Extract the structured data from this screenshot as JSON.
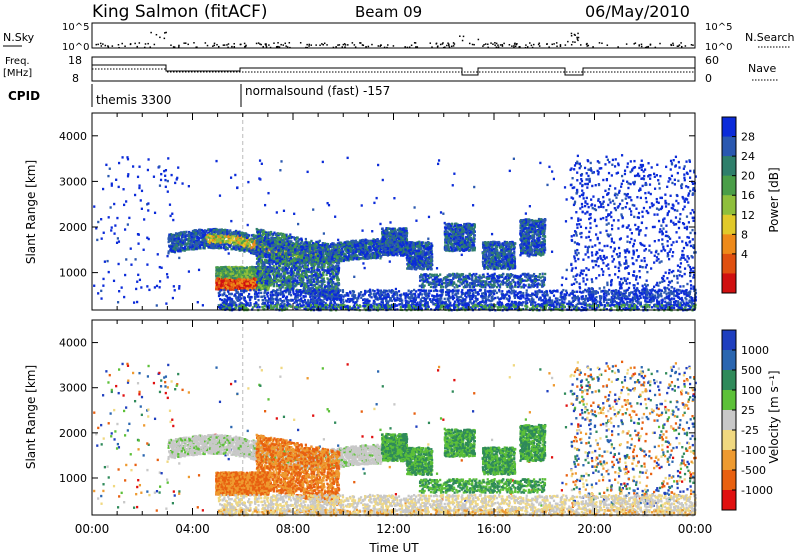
{
  "header": {
    "station": "King Salmon (fitACF)",
    "beam": "Beam 09",
    "date": "06/May/2010"
  },
  "panels": {
    "nsky_label": "N.Sky",
    "nsearch_label": "N.Search",
    "freq_label_line1": "Freq.",
    "freq_label_line2": "[MHz]",
    "nave_label": "Nave",
    "cpid_label": "CPID",
    "nsky_ticks": [
      "10^5",
      "10^0"
    ],
    "nsearch_ticks": [
      "10^5",
      "10^0"
    ],
    "freq_ticks": [
      "18",
      "8"
    ],
    "nave_ticks": [
      "60",
      "0"
    ],
    "cpid_segments": [
      {
        "label": "themis 3300",
        "start_hour": 0
      },
      {
        "label": "normalsound (fast) -157",
        "start_hour": 6
      }
    ]
  },
  "chart_data": [
    {
      "type": "heatmap",
      "title": "",
      "xlabel": "Time UT",
      "ylabel": "Slant Range [km]",
      "xlim": [
        0,
        24
      ],
      "ylim": [
        180,
        4500
      ],
      "x_tick_labels": [
        "00:00",
        "04:00",
        "08:00",
        "12:00",
        "16:00",
        "20:00",
        "00:00"
      ],
      "y_tick_labels": [
        "1000",
        "2000",
        "3000",
        "4000"
      ],
      "colorbar": {
        "label": "Power [dB]",
        "ticks": [
          "4",
          "8",
          "12",
          "16",
          "20",
          "24",
          "28"
        ],
        "colors": [
          "#0b2bd9",
          "#2a58b0",
          "#2f7f6b",
          "#4a9e48",
          "#8fbf3c",
          "#e1c92a",
          "#ee8a1a",
          "#e05010",
          "#d01010"
        ]
      },
      "features": [
        {
          "name": "F-region band",
          "hours": [
            3.0,
            9.5
          ],
          "range_km": [
            1400,
            1900
          ],
          "max_power_db": 20
        },
        {
          "name": "E-region intense echo",
          "hours": [
            4.9,
            7.0
          ],
          "range_km": [
            650,
            1150
          ],
          "max_power_db": 28
        },
        {
          "name": "midday patches",
          "hours": [
            11.5,
            18.0
          ],
          "range_km": [
            900,
            2200
          ],
          "max_power_db": 14
        }
      ]
    },
    {
      "type": "heatmap",
      "title": "",
      "xlabel": "Time UT",
      "ylabel": "Slant Range [km]",
      "xlim": [
        0,
        24
      ],
      "ylim": [
        180,
        4500
      ],
      "x_tick_labels": [
        "00:00",
        "04:00",
        "08:00",
        "12:00",
        "16:00",
        "20:00",
        "00:00"
      ],
      "y_tick_labels": [
        "1000",
        "2000",
        "3000",
        "4000"
      ],
      "colorbar": {
        "label": "Velocity [m s⁻¹]",
        "ticks": [
          "1000",
          "500",
          "100",
          "25",
          "-25",
          "-100",
          "-500",
          "-1000"
        ],
        "colors": [
          "#1f3fbf",
          "#2a66b0",
          "#2f8a5a",
          "#5cc038",
          "#c8c8c8",
          "#f0d880",
          "#ee9a30",
          "#e86010",
          "#e01010"
        ]
      },
      "features": [
        {
          "name": "ground scatter band",
          "hours": [
            3.0,
            11.5
          ],
          "range_km": [
            1400,
            1900
          ],
          "velocity_ms": 0
        },
        {
          "name": "negative flow region",
          "hours": [
            4.9,
            9.5
          ],
          "range_km": [
            650,
            1200
          ],
          "velocity_ms": -300
        },
        {
          "name": "positive flow patches",
          "hours": [
            11.5,
            18.0
          ],
          "range_km": [
            900,
            2200
          ],
          "velocity_ms": 150
        }
      ]
    }
  ]
}
